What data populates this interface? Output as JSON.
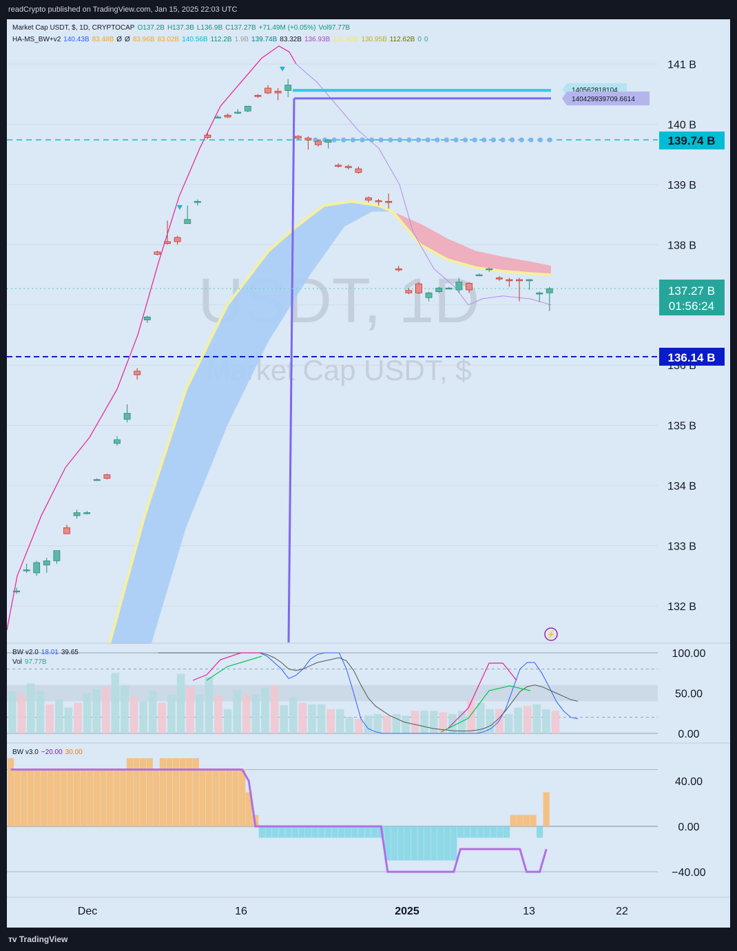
{
  "header": {
    "text": "readCrypto published on TradingView.com, Jan 15, 2025 22:03 UTC"
  },
  "footer": {
    "brand": "TradingView"
  },
  "legend": {
    "line1": [
      {
        "text": "Market Cap USDT, $, 1D, CRYPTOCAP",
        "color": "#131722"
      },
      {
        "text": "O137.2B",
        "color": "#089981"
      },
      {
        "text": "H137.3B",
        "color": "#089981"
      },
      {
        "text": "L136.9B",
        "color": "#089981"
      },
      {
        "text": "C137.27B",
        "color": "#089981"
      },
      {
        "text": "+71.49M (+0.05%)",
        "color": "#089981"
      },
      {
        "text": "Vol97.77B",
        "color": "#089981"
      }
    ],
    "line2": [
      {
        "text": "HA-MS_BW+v2",
        "color": "#131722"
      },
      {
        "text": "140.43B",
        "color": "#2962ff"
      },
      {
        "text": "83.48B",
        "color": "#f5a623"
      },
      {
        "text": "Ø",
        "color": "#131722"
      },
      {
        "text": "Ø",
        "color": "#131722"
      },
      {
        "text": "83.96B",
        "color": "#f5a623"
      },
      {
        "text": "83.02B",
        "color": "#f5a623"
      },
      {
        "text": "140.56B",
        "color": "#00bcd4"
      },
      {
        "text": "112.2B",
        "color": "#089981"
      },
      {
        "text": "1.9B",
        "color": "#9e9e9e"
      },
      {
        "text": "139.74B",
        "color": "#00838f"
      },
      {
        "text": "83.32B",
        "color": "#131722"
      },
      {
        "text": "136.93B",
        "color": "#ab47bc"
      },
      {
        "text": "131.45B",
        "color": "#f3e85a"
      },
      {
        "text": "130.95B",
        "color": "#c0b020"
      },
      {
        "text": "112.62B",
        "color": "#6d6d00"
      },
      {
        "text": "0",
        "color": "#26a69a"
      },
      {
        "text": "0",
        "color": "#26a69a"
      }
    ]
  },
  "watermark": {
    "symbol": "USDT, 1D",
    "name": "Market Cap USDT, $"
  },
  "price_axis": {
    "ticks": [
      "141 B",
      "140 B",
      "139 B",
      "138 B",
      "137 B",
      "136 B",
      "135 B",
      "134 B",
      "133 B",
      "132 B"
    ]
  },
  "price_labels": {
    "level_cyan": "139.74 B",
    "last_price": "137.27 B",
    "countdown": "01:56:24",
    "level_blue": "136.14 B",
    "tag_upper": "140562818104",
    "tag_lower": "140429939709.6614"
  },
  "time_axis": {
    "labels": [
      "Dec",
      "16",
      "2025",
      "13",
      "22"
    ]
  },
  "bw2": {
    "legend": [
      {
        "text": "BW v2.0",
        "color": "#131722"
      },
      {
        "text": "18.01",
        "color": "#2962ff"
      },
      {
        "text": "39.65",
        "color": "#131722"
      }
    ],
    "vol_legend": [
      {
        "text": "Vol",
        "color": "#131722"
      },
      {
        "text": "97.77B",
        "color": "#26a69a"
      }
    ],
    "axis": [
      "100.00",
      "50.00",
      "0.00"
    ]
  },
  "bw3": {
    "legend": [
      {
        "text": "BW v3.0",
        "color": "#131722"
      },
      {
        "text": "−20.00",
        "color": "#7b1fa2"
      },
      {
        "text": "30.00",
        "color": "#f57c00"
      }
    ],
    "axis": [
      "40.00",
      "0.00",
      "−40.00"
    ]
  },
  "colors": {
    "bg": "#dbe8f5",
    "up": "#26a69a",
    "down": "#ef5350",
    "cyan": "#00bcd4",
    "purple_line": "#7b68ee",
    "magenta": "#e91e9a",
    "cloud_blue": "#a8cdf7",
    "cloud_red": "#f0a8b8",
    "navy": "#0a1cc8"
  },
  "chart_data": [
    {
      "type": "candlestick",
      "title": "Market Cap USDT, $, 1D, CRYPTOCAP",
      "ylabel": "Market Cap ($)",
      "ylim": [
        131.5,
        141.9
      ],
      "y_unit": "B",
      "x_labels": [
        "Dec",
        "16",
        "2025",
        "13",
        "22"
      ],
      "candles": [
        {
          "o": 132.25,
          "h": 132.3,
          "l": 132.2,
          "c": 132.25
        },
        {
          "o": 132.6,
          "h": 132.7,
          "l": 132.55,
          "c": 132.6
        },
        {
          "o": 132.55,
          "h": 132.75,
          "l": 132.5,
          "c": 132.72
        },
        {
          "o": 132.68,
          "h": 132.8,
          "l": 132.55,
          "c": 132.75
        },
        {
          "o": 132.75,
          "h": 132.92,
          "l": 132.7,
          "c": 132.92
        },
        {
          "o": 133.3,
          "h": 133.35,
          "l": 133.2,
          "c": 133.2
        },
        {
          "o": 133.5,
          "h": 133.6,
          "l": 133.45,
          "c": 133.55
        },
        {
          "o": 133.55,
          "h": 133.58,
          "l": 133.52,
          "c": 133.55
        },
        {
          "o": 134.1,
          "h": 134.12,
          "l": 134.08,
          "c": 134.1
        },
        {
          "o": 134.18,
          "h": 134.2,
          "l": 134.1,
          "c": 134.12
        },
        {
          "o": 134.7,
          "h": 134.82,
          "l": 134.66,
          "c": 134.76
        },
        {
          "o": 135.1,
          "h": 135.35,
          "l": 135.05,
          "c": 135.2
        },
        {
          "o": 135.9,
          "h": 135.95,
          "l": 135.76,
          "c": 135.84
        },
        {
          "o": 136.75,
          "h": 136.82,
          "l": 136.7,
          "c": 136.8
        },
        {
          "o": 137.88,
          "h": 137.9,
          "l": 137.82,
          "c": 137.84
        },
        {
          "o": 138.05,
          "h": 138.4,
          "l": 138.0,
          "c": 138.02
        },
        {
          "o": 138.12,
          "h": 138.15,
          "l": 138.0,
          "c": 138.05
        },
        {
          "o": 138.35,
          "h": 138.65,
          "l": 138.35,
          "c": 138.42
        },
        {
          "o": 138.7,
          "h": 138.75,
          "l": 138.65,
          "c": 138.72
        },
        {
          "o": 139.82,
          "h": 139.85,
          "l": 139.75,
          "c": 139.78
        },
        {
          "o": 140.12,
          "h": 140.15,
          "l": 140.1,
          "c": 140.12
        },
        {
          "o": 140.15,
          "h": 140.18,
          "l": 140.1,
          "c": 140.12
        },
        {
          "o": 140.2,
          "h": 140.25,
          "l": 140.17,
          "c": 140.2
        },
        {
          "o": 140.22,
          "h": 140.3,
          "l": 140.2,
          "c": 140.3
        },
        {
          "o": 140.48,
          "h": 140.5,
          "l": 140.44,
          "c": 140.46
        },
        {
          "o": 140.6,
          "h": 140.65,
          "l": 140.5,
          "c": 140.52
        },
        {
          "o": 140.55,
          "h": 140.6,
          "l": 140.4,
          "c": 140.52
        },
        {
          "o": 140.56,
          "h": 140.75,
          "l": 140.45,
          "c": 140.65
        },
        {
          "o": 139.8,
          "h": 139.82,
          "l": 139.75,
          "c": 139.77
        },
        {
          "o": 139.77,
          "h": 139.8,
          "l": 139.58,
          "c": 139.74
        },
        {
          "o": 139.72,
          "h": 139.74,
          "l": 139.63,
          "c": 139.66
        },
        {
          "o": 139.7,
          "h": 139.75,
          "l": 139.6,
          "c": 139.74
        },
        {
          "o": 139.32,
          "h": 139.35,
          "l": 139.28,
          "c": 139.3
        },
        {
          "o": 139.3,
          "h": 139.33,
          "l": 139.25,
          "c": 139.28
        },
        {
          "o": 139.26,
          "h": 139.3,
          "l": 139.18,
          "c": 139.2
        },
        {
          "o": 138.78,
          "h": 138.8,
          "l": 138.7,
          "c": 138.74
        },
        {
          "o": 138.73,
          "h": 138.76,
          "l": 138.65,
          "c": 138.72
        },
        {
          "o": 138.72,
          "h": 138.85,
          "l": 138.6,
          "c": 138.7
        },
        {
          "o": 137.6,
          "h": 137.65,
          "l": 137.55,
          "c": 137.58
        },
        {
          "o": 137.24,
          "h": 137.28,
          "l": 137.18,
          "c": 137.2
        },
        {
          "o": 137.35,
          "h": 137.38,
          "l": 137.18,
          "c": 137.2
        },
        {
          "o": 137.12,
          "h": 137.22,
          "l": 137.06,
          "c": 137.2
        },
        {
          "o": 137.22,
          "h": 137.3,
          "l": 137.2,
          "c": 137.28
        },
        {
          "o": 137.28,
          "h": 137.3,
          "l": 137.26,
          "c": 137.28
        },
        {
          "o": 137.25,
          "h": 137.45,
          "l": 137.2,
          "c": 137.38
        },
        {
          "o": 137.36,
          "h": 137.38,
          "l": 137.2,
          "c": 137.25
        },
        {
          "o": 137.5,
          "h": 137.52,
          "l": 137.48,
          "c": 137.5
        },
        {
          "o": 137.6,
          "h": 137.62,
          "l": 137.55,
          "c": 137.6
        },
        {
          "o": 137.45,
          "h": 137.48,
          "l": 137.4,
          "c": 137.43
        },
        {
          "o": 137.42,
          "h": 137.45,
          "l": 137.3,
          "c": 137.4
        },
        {
          "o": 137.42,
          "h": 137.45,
          "l": 137.06,
          "c": 137.4
        },
        {
          "o": 137.4,
          "h": 137.43,
          "l": 137.25,
          "c": 137.42
        },
        {
          "o": 137.18,
          "h": 137.22,
          "l": 137.05,
          "c": 137.2
        },
        {
          "o": 137.2,
          "h": 137.3,
          "l": 136.9,
          "c": 137.27
        }
      ],
      "levels": [
        {
          "name": "cyan solid",
          "value": 140.5628
        },
        {
          "name": "purple solid",
          "value": 140.4299
        },
        {
          "name": "cyan dashed",
          "value": 139.74
        },
        {
          "name": "navy dashed",
          "value": 136.14
        }
      ]
    },
    {
      "type": "line",
      "title": "BW v2.0",
      "ylim": [
        0,
        100
      ],
      "series": [
        {
          "name": "fast",
          "values": [
            100,
            100,
            100,
            100,
            100,
            100,
            100,
            100,
            100,
            100,
            100,
            100,
            100,
            100,
            100,
            96,
            88,
            80,
            68,
            72,
            80,
            92,
            98,
            100,
            100,
            100,
            80,
            50,
            18,
            6,
            2,
            0,
            0,
            0,
            0,
            0,
            0,
            0,
            0,
            0,
            0,
            0,
            0,
            0,
            0,
            2,
            6,
            14,
            30,
            55,
            80,
            88,
            88,
            75,
            58,
            40,
            28,
            20,
            18
          ]
        },
        {
          "name": "slow",
          "values": [
            100,
            100,
            100,
            100,
            100,
            100,
            100,
            100,
            100,
            100,
            100,
            100,
            100,
            100,
            100,
            98,
            94,
            88,
            80,
            78,
            80,
            84,
            88,
            90,
            92,
            94,
            90,
            78,
            60,
            44,
            34,
            28,
            22,
            18,
            14,
            12,
            10,
            8,
            6,
            5,
            4,
            3,
            3,
            3,
            4,
            6,
            10,
            18,
            28,
            40,
            52,
            58,
            60,
            58,
            54,
            50,
            46,
            42,
            40
          ]
        }
      ]
    },
    {
      "type": "bar",
      "title": "Vol",
      "values": [
        52,
        48,
        62,
        52,
        36,
        42,
        32,
        38,
        50,
        55,
        58,
        75,
        60,
        45,
        40,
        52,
        38,
        48,
        74,
        58,
        48,
        70,
        46,
        30,
        54,
        48,
        48,
        56,
        60,
        35,
        45,
        38,
        36,
        36,
        30,
        30,
        20,
        18,
        22,
        24,
        22,
        24,
        22,
        28,
        28,
        28,
        26,
        24,
        28,
        42,
        38,
        30,
        30,
        24,
        32,
        34,
        36,
        30,
        28
      ]
    },
    {
      "type": "bar",
      "title": "BW v3.0",
      "values": [
        60,
        50,
        50,
        50,
        50,
        50,
        50,
        50,
        50,
        50,
        50,
        50,
        50,
        50,
        50,
        50,
        50,
        50,
        60,
        60,
        60,
        60,
        50,
        60,
        60,
        60,
        60,
        60,
        60,
        50,
        50,
        50,
        50,
        50,
        50,
        50,
        30,
        10,
        -10,
        -10,
        -10,
        -10,
        -10,
        -10,
        -10,
        -10,
        -10,
        -10,
        -10,
        -10,
        -10,
        -10,
        -10,
        -10,
        -10,
        -10,
        -10,
        -30,
        -30,
        -30,
        -30,
        -30,
        -30,
        -30,
        -30,
        -30,
        -30,
        -30,
        -10,
        -10,
        -10,
        -10,
        -10,
        -10,
        -10,
        -10,
        10,
        10,
        10,
        10,
        -10,
        30
      ],
      "signal": [
        50,
        50,
        50,
        50,
        50,
        50,
        50,
        50,
        50,
        50,
        50,
        50,
        50,
        50,
        50,
        50,
        50,
        50,
        50,
        50,
        50,
        50,
        50,
        50,
        50,
        50,
        50,
        50,
        50,
        50,
        50,
        50,
        50,
        50,
        50,
        50,
        40,
        0,
        0,
        0,
        0,
        0,
        0,
        0,
        0,
        0,
        0,
        0,
        0,
        0,
        0,
        0,
        0,
        0,
        0,
        0,
        0,
        -40,
        -40,
        -40,
        -40,
        -40,
        -40,
        -40,
        -40,
        -40,
        -40,
        -40,
        -20,
        -20,
        -20,
        -20,
        -20,
        -20,
        -20,
        -20,
        -20,
        -20,
        -40,
        -40,
        -40,
        -20
      ],
      "ylim": [
        -50,
        60
      ]
    }
  ]
}
